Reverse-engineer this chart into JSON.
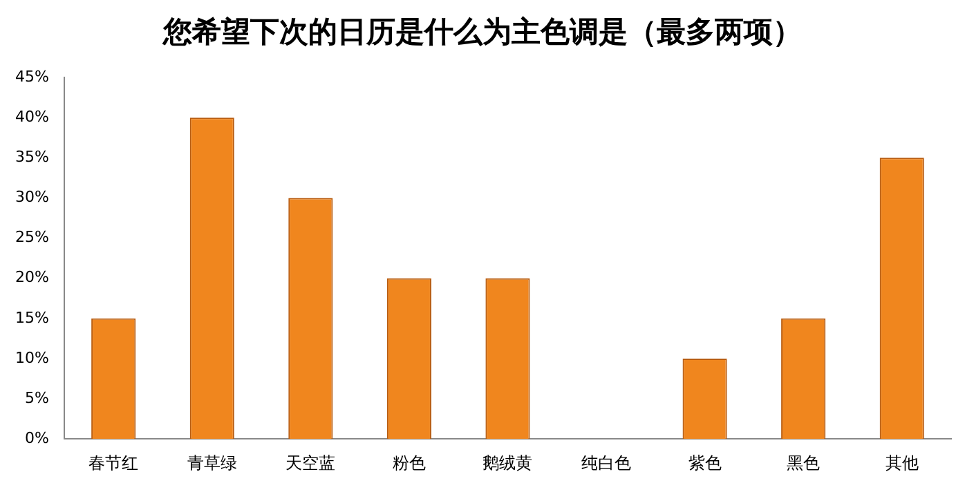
{
  "chart_data": {
    "type": "bar",
    "title": "您希望下次的日历是什么为主色调是（最多两项）",
    "categories": [
      "春节红",
      "青草绿",
      "天空蓝",
      "粉色",
      "鹅绒黄",
      "纯白色",
      "紫色",
      "黑色",
      "其他"
    ],
    "values": [
      15,
      40,
      30,
      20,
      20,
      0,
      10,
      15,
      35
    ],
    "color": "#f0861e",
    "ylim": [
      0,
      45
    ],
    "yticks": [
      {
        "value": 0,
        "label": "0%"
      },
      {
        "value": 5,
        "label": "5%"
      },
      {
        "value": 10,
        "label": "10%"
      },
      {
        "value": 15,
        "label": "15%"
      },
      {
        "value": 20,
        "label": "20%"
      },
      {
        "value": 25,
        "label": "25%"
      },
      {
        "value": 30,
        "label": "30%"
      },
      {
        "value": 35,
        "label": "35%"
      },
      {
        "value": 40,
        "label": "40%"
      },
      {
        "value": 45,
        "label": "45%"
      }
    ],
    "grid": false,
    "legend": false
  }
}
